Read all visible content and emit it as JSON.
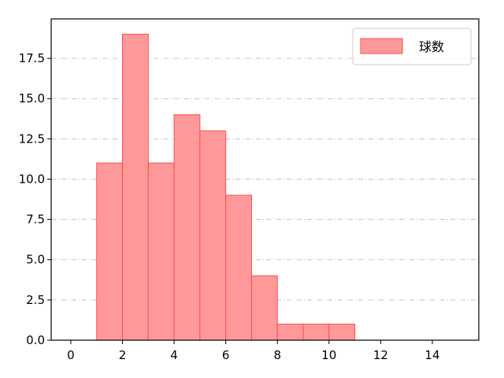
{
  "chart_data": {
    "type": "bar",
    "histogram": true,
    "bin_edges": [
      1,
      2,
      3,
      4,
      5,
      6,
      7,
      8,
      9,
      10,
      11
    ],
    "values": [
      11,
      19,
      11,
      14,
      13,
      9,
      4,
      1,
      1,
      1
    ],
    "xlim": [
      -0.76,
      15.8
    ],
    "ylim": [
      0,
      19.95
    ],
    "xticks": [
      0,
      2,
      4,
      6,
      8,
      10,
      12,
      14
    ],
    "xtick_labels": [
      "0",
      "2",
      "4",
      "6",
      "8",
      "10",
      "12",
      "14"
    ],
    "yticks": [
      0,
      2.5,
      5,
      7.5,
      10,
      12.5,
      15,
      17.5
    ],
    "ytick_labels": [
      "0.0",
      "2.5",
      "5.0",
      "7.5",
      "10.0",
      "12.5",
      "15.0",
      "17.5"
    ],
    "grid": "y-dashdot",
    "legend": {
      "placement": "top-right",
      "entries": [
        "球数"
      ]
    },
    "colors": {
      "bar_fill": "#ff9999",
      "bar_edge": "#ff4d4d",
      "grid": "#b0b0b0"
    },
    "title": "",
    "xlabel": "",
    "ylabel": ""
  }
}
